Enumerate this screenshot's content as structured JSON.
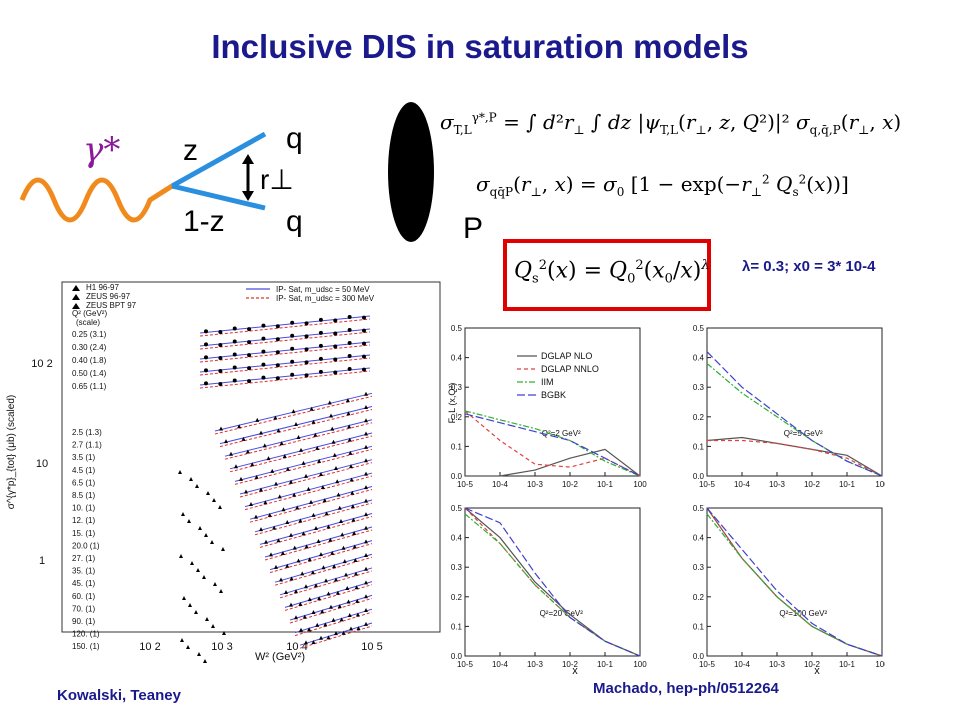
{
  "slide": {
    "title": "Inclusive DIS in saturation models",
    "credits": {
      "left": "Kowalski, Teaney",
      "right": "Machado, hep-ph/0512264"
    }
  },
  "diagram": {
    "photon_label": "γ*",
    "z_label": "z",
    "one_minus_z_label": "1-z",
    "quark_top": "q",
    "quark_bottom": "q",
    "r_label": "r⊥",
    "proton_label": "P"
  },
  "formulas": {
    "cross_section": "σ_{T,L}^{γ*,P} = ∫ d²r⊥ ∫ dz |ψ_{T,L}(r⊥, z, Q²)|² σ_{q,q̄,P}(r⊥, x)",
    "dipole": "σ_{qq̄P}(r⊥, x) = σ₀ [1 − exp(−r⊥² Q_s²(x))]",
    "saturation_scale": "Q_s²(x) = Q₀² (x₀/x)^λ",
    "parameters": "λ= 0.3; x0 = 3* 10-4"
  },
  "left_plot": {
    "ylabel": "σ^{γ*p}_{tot} (μb) (scaled)",
    "xlabel": "W² (GeV²)",
    "legend_data": [
      "H1 96-97",
      "ZEUS 96-97",
      "ZEUS BPT 97"
    ],
    "legend_lines": [
      "IP- Sat, m_udsc = 50 MeV",
      "IP- Sat, m_udsc = 300 MeV"
    ],
    "q2_header": "Q² (GeV²)",
    "q2_subheader": "(scale)",
    "q2_labels": [
      "0.25 (3.1)",
      "0.30 (2.4)",
      "0.40 (1.8)",
      "0.50 (1.4)",
      "0.65 (1.1)",
      "2.5 (1.3)",
      "2.7 (1.1)",
      "3.5 (1)",
      "4.5 (1)",
      "6.5 (1)",
      "8.5 (1)",
      "10. (1)",
      "12. (1)",
      "15. (1)",
      "20.0 (1)",
      "27. (1)",
      "35. (1)",
      "45. (1)",
      "60. (1)",
      "70. (1)",
      "90. (1)",
      "120. (1)",
      "150. (1)"
    ],
    "yticks": [
      "10 2",
      "10",
      "1"
    ],
    "xticks": [
      "10 2",
      "10 3",
      "10 4",
      "10 5"
    ],
    "colors": {
      "solid": "#4a4ae0",
      "dashed": "#e03030"
    }
  },
  "right_panels": {
    "ylabel": "F_L (x,Q²)",
    "xlabel": "x",
    "legend": [
      {
        "name": "DGLAP NLO",
        "color": "#555555",
        "style": "solid"
      },
      {
        "name": "DGLAP NNLO",
        "color": "#e04040",
        "style": "dashed"
      },
      {
        "name": "IIM",
        "color": "#30b030",
        "style": "dashdot"
      },
      {
        "name": "BGBK",
        "color": "#4040d0",
        "style": "longdash"
      }
    ],
    "yticks": [
      "0.0",
      "0.1",
      "0.2",
      "0.3",
      "0.4",
      "0.5"
    ],
    "xticks": [
      "10-5",
      "10-4",
      "10-3",
      "10-2",
      "10-1",
      "100"
    ],
    "panel_labels": [
      "Q²=2 GeV²",
      "Q²=5 GeV²",
      "Q²=20 GeV²",
      "Q²=100 GeV²"
    ]
  },
  "chart_data": [
    {
      "type": "line",
      "panel": "Q²=2 GeV²",
      "x": [
        "1e-5",
        "1e-4",
        "1e-3",
        "1e-2",
        "1e-1",
        "1"
      ],
      "series": [
        {
          "name": "DGLAP NLO",
          "values": [
            0.0,
            0.0,
            0.02,
            0.06,
            0.09,
            0.0
          ]
        },
        {
          "name": "DGLAP NNLO",
          "values": [
            0.22,
            0.12,
            0.04,
            0.03,
            0.06,
            0.0
          ]
        },
        {
          "name": "IIM",
          "values": [
            0.22,
            0.19,
            0.16,
            0.12,
            0.05,
            0.0
          ]
        },
        {
          "name": "BGBK",
          "values": [
            0.21,
            0.18,
            0.15,
            0.12,
            0.06,
            0.0
          ]
        }
      ],
      "ylim": [
        0,
        0.5
      ]
    },
    {
      "type": "line",
      "panel": "Q²=5 GeV²",
      "x": [
        "1e-5",
        "1e-4",
        "1e-3",
        "1e-2",
        "1e-1",
        "1"
      ],
      "series": [
        {
          "name": "DGLAP NLO",
          "values": [
            0.12,
            0.13,
            0.11,
            0.09,
            0.07,
            0.0
          ]
        },
        {
          "name": "DGLAP NNLO",
          "values": [
            0.12,
            0.12,
            0.11,
            0.09,
            0.06,
            0.0
          ]
        },
        {
          "name": "IIM",
          "values": [
            0.38,
            0.28,
            0.2,
            0.12,
            0.05,
            0.0
          ]
        },
        {
          "name": "BGBK",
          "values": [
            0.42,
            0.3,
            0.21,
            0.12,
            0.05,
            0.0
          ]
        }
      ],
      "ylim": [
        0,
        0.5
      ]
    },
    {
      "type": "line",
      "panel": "Q²=20 GeV²",
      "x": [
        "1e-5",
        "1e-4",
        "1e-3",
        "1e-2",
        "1e-1",
        "1"
      ],
      "series": [
        {
          "name": "DGLAP NLO",
          "values": [
            0.5,
            0.4,
            0.25,
            0.14,
            0.05,
            0.0
          ]
        },
        {
          "name": "DGLAP NNLO",
          "values": [
            0.5,
            0.38,
            0.24,
            0.13,
            0.05,
            0.0
          ]
        },
        {
          "name": "IIM",
          "values": [
            0.48,
            0.38,
            0.24,
            0.13,
            0.05,
            0.0
          ]
        },
        {
          "name": "BGBK",
          "values": [
            0.5,
            0.45,
            0.28,
            0.13,
            0.05,
            0.0
          ]
        }
      ],
      "ylim": [
        0,
        0.5
      ]
    },
    {
      "type": "line",
      "panel": "Q²=100 GeV²",
      "x": [
        "1e-5",
        "1e-4",
        "1e-3",
        "1e-2",
        "1e-1",
        "1"
      ],
      "series": [
        {
          "name": "DGLAP NLO",
          "values": [
            0.5,
            0.33,
            0.2,
            0.1,
            0.04,
            0.0
          ]
        },
        {
          "name": "DGLAP NNLO",
          "values": [
            0.5,
            0.33,
            0.2,
            0.1,
            0.04,
            0.0
          ]
        },
        {
          "name": "IIM",
          "values": [
            0.48,
            0.33,
            0.2,
            0.1,
            0.04,
            0.0
          ]
        },
        {
          "name": "BGBK",
          "values": [
            0.5,
            0.36,
            0.22,
            0.11,
            0.04,
            0.0
          ]
        }
      ],
      "ylim": [
        0,
        0.5
      ]
    }
  ]
}
